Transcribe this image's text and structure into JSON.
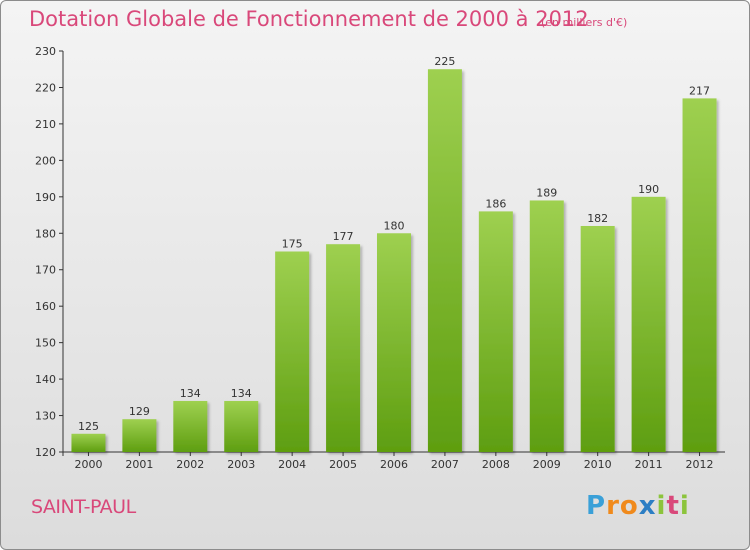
{
  "title": "Dotation Globale de Fonctionnement de 2000 à 2012",
  "subtitle": "(en milliers d'€)",
  "commune": "SAINT-PAUL",
  "logo": {
    "letters": [
      "P",
      "r",
      "o",
      "x",
      "i",
      "t",
      "i"
    ],
    "colors": [
      "#3aa0d8",
      "#f08a1c",
      "#f08a1c",
      "#2c7ec4",
      "#8cc43c",
      "#d9487a",
      "#8cc43c"
    ]
  },
  "colors": {
    "title": "#d9487a",
    "bar_light": "#9ed050",
    "bar_dark": "#5e9e10",
    "axis": "#333333"
  },
  "chart_data": {
    "type": "bar",
    "title": "Dotation Globale de Fonctionnement de 2000 à 2012",
    "subtitle": "(en milliers d'€)",
    "categories": [
      "2000",
      "2001",
      "2002",
      "2003",
      "2004",
      "2005",
      "2006",
      "2007",
      "2008",
      "2009",
      "2010",
      "2011",
      "2012"
    ],
    "values": [
      125,
      129,
      134,
      134,
      175,
      177,
      180,
      225,
      186,
      189,
      182,
      190,
      217
    ],
    "data_labels": [
      "125",
      "129",
      "134",
      "134",
      "175",
      "177",
      "180",
      "225",
      "186",
      "189",
      "182",
      "190",
      "217"
    ],
    "y_ticks": [
      120,
      130,
      140,
      150,
      160,
      170,
      180,
      190,
      200,
      210,
      220,
      230
    ],
    "ylim": [
      120,
      230
    ],
    "grid": false,
    "legend": "none"
  }
}
